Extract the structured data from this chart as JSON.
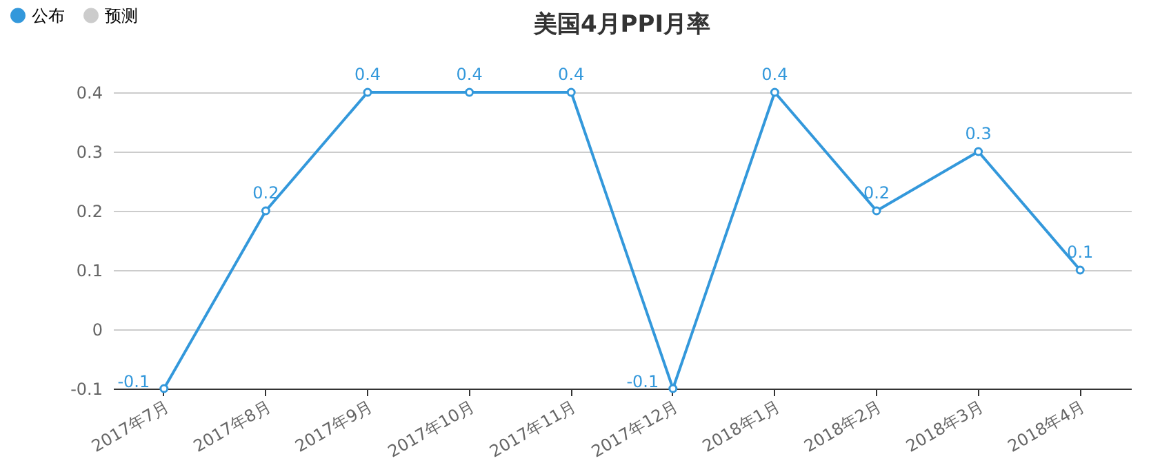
{
  "chart_data": {
    "type": "line",
    "title": "美国4月PPI月率",
    "categories": [
      "2017年7月",
      "2017年8月",
      "2017年9月",
      "2017年10月",
      "2017年11月",
      "2017年12月",
      "2018年1月",
      "2018年2月",
      "2018年3月",
      "2018年4月"
    ],
    "series": [
      {
        "name": "公布",
        "color": "#3398db",
        "values": [
          -0.1,
          0.2,
          0.4,
          0.4,
          0.4,
          -0.1,
          0.4,
          0.2,
          0.3,
          0.1
        ]
      },
      {
        "name": "预测",
        "color": "#cccccc",
        "values": [
          null,
          null,
          null,
          null,
          null,
          null,
          null,
          null,
          null,
          null
        ]
      }
    ],
    "ylim": [
      -0.1,
      0.4
    ],
    "yticks": [
      -0.1,
      0,
      0.1,
      0.2,
      0.3,
      0.4
    ],
    "grid": "y",
    "legend": "top left",
    "marker": "circle",
    "data_labels": true
  }
}
